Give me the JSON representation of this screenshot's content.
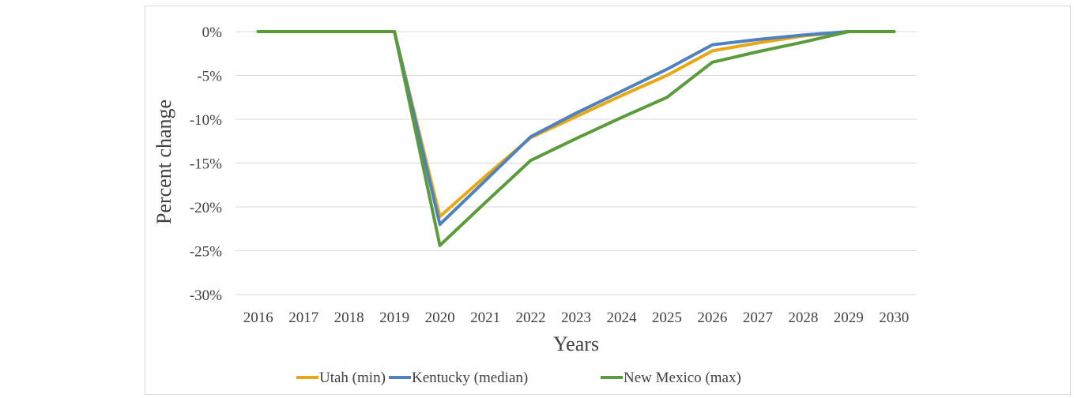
{
  "chart_data": {
    "type": "line",
    "title": "",
    "xlabel": "Years",
    "ylabel": "Percent change",
    "x": [
      "2016",
      "2017",
      "2018",
      "2019",
      "2020",
      "2021",
      "2022",
      "2023",
      "2024",
      "2025",
      "2026",
      "2027",
      "2028",
      "2029",
      "2030"
    ],
    "ylim": [
      -30,
      0
    ],
    "yticks": [
      "0%",
      "-5%",
      "-10%",
      "-15%",
      "-20%",
      "-25%",
      "-30%"
    ],
    "grid": true,
    "legend_position": "bottom",
    "series": [
      {
        "name": "Utah (min)",
        "color": "#e6a817",
        "values": [
          0,
          0,
          0,
          0,
          -21.1,
          -16.5,
          -12.1,
          -9.7,
          -7.3,
          -5.0,
          -2.2,
          -1.3,
          -0.5,
          0,
          0
        ]
      },
      {
        "name": "Kentucky (median)",
        "color": "#4e81bd",
        "values": [
          0,
          0,
          0,
          0,
          -22.0,
          -17.0,
          -12.0,
          -9.3,
          -6.8,
          -4.3,
          -1.5,
          -0.9,
          -0.4,
          0,
          0
        ]
      },
      {
        "name": "New Mexico (max)",
        "color": "#5a9b3c",
        "values": [
          0,
          0,
          0,
          0,
          -24.4,
          -19.5,
          -14.7,
          -12.2,
          -9.8,
          -7.5,
          -3.5,
          -2.3,
          -1.2,
          0,
          0
        ]
      }
    ]
  }
}
